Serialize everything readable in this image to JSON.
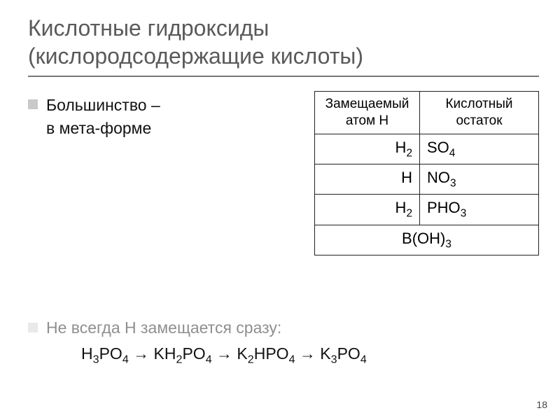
{
  "title_line1": "Кислотные гидроксиды",
  "title_line2": "(кислородсодержащие кислоты)",
  "bullet1_line1": "Большинство –",
  "bullet1_line2": "в мета-форме",
  "table": {
    "header_h": "Замещаемый атом H",
    "header_r": "Кислотный остаток",
    "rows": [
      {
        "h": "H",
        "h_sub": "2",
        "r": "SO",
        "r_sub": "4"
      },
      {
        "h": "H",
        "h_sub": "",
        "r": "NO",
        "r_sub": "3"
      },
      {
        "h": "H",
        "h_sub": "2",
        "r": "PHO",
        "r_sub": "3"
      }
    ],
    "merged": "B(OH)",
    "merged_sub": "3"
  },
  "bullet2": "Не всегда H замещается сразу:",
  "reaction": {
    "a": "H",
    "a_s1": "3",
    "a2": "PO",
    "a_s2": "4",
    "b": "KH",
    "b_s1": "2",
    "b2": "PO",
    "b_s2": "4",
    "c": "K",
    "c_s1": "2",
    "c2": "HPO",
    "c_s2": "4",
    "d": "K",
    "d_s1": "3",
    "d2": "PO",
    "d_s2": "4",
    "arrow": " → "
  },
  "page_number": "18",
  "colors": {
    "title": "#5a5a5a",
    "bullet_gray": "#c9c9c9",
    "bullet_light": "#e9e9e9",
    "text": "#111111",
    "muted": "#8f8f8f",
    "border": "#222222"
  }
}
